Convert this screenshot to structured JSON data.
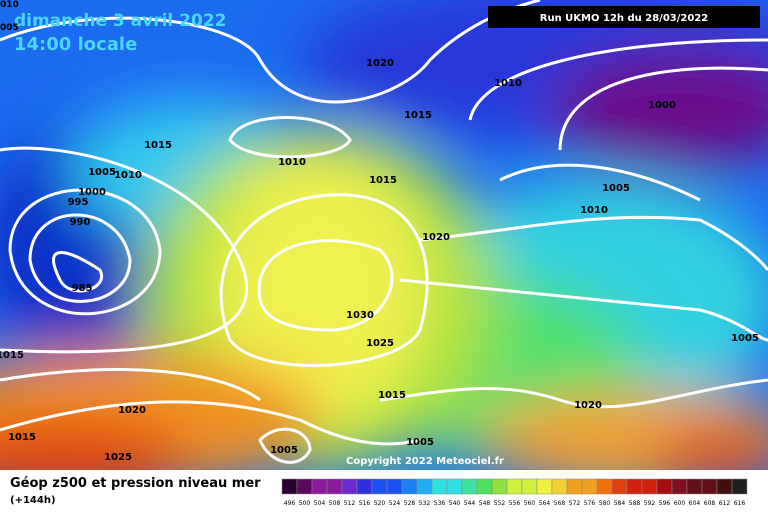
{
  "header": {
    "title": "dimanche 3 avril 2022",
    "time": "14:00 locale",
    "run": "Run UKMO 12h du 28/03/2022",
    "edge_labels": [
      "010",
      "005"
    ]
  },
  "isobar_labels": [
    "1020",
    "1010",
    "1000",
    "1015",
    "1015",
    "1010",
    "1005",
    "1010",
    "1000",
    "995",
    "1015",
    "1005",
    "990",
    "1010",
    "1020",
    "985",
    "1030",
    "1025",
    "1015",
    "1005",
    "1015",
    "1020",
    "1020",
    "1015",
    "1005",
    "1005",
    "1025"
  ],
  "footer": {
    "copyright": "Copyright 2022 Meteociel.fr",
    "caption": "Géop z500 et pression niveau mer",
    "lead": "(+144h)"
  },
  "colorbar": {
    "labels": [
      496,
      500,
      504,
      508,
      512,
      516,
      520,
      524,
      528,
      532,
      536,
      540,
      544,
      548,
      552,
      556,
      560,
      564,
      568,
      572,
      576,
      580,
      584,
      588,
      592,
      596,
      600,
      604,
      608,
      612,
      616
    ]
  }
}
